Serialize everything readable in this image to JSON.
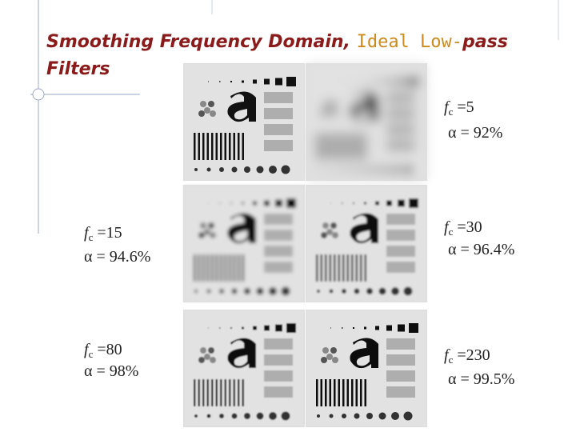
{
  "title": {
    "part1": "Smoothing Frequency Domain, ",
    "part2": "Ideal Low-",
    "part3": "pass Filters"
  },
  "panels": [
    {
      "f": "f",
      "sub": "c",
      "fc": " =5",
      "alpha": "α = 92%"
    },
    {
      "f": "f",
      "sub": "c",
      "fc": " =15",
      "alpha": "α = 94.6%"
    },
    {
      "f": "f",
      "sub": "c",
      "fc": " =30",
      "alpha": "α = 96.4%"
    },
    {
      "f": "f",
      "sub": "c",
      "fc": " =80",
      "alpha": "α = 98%"
    },
    {
      "f": "f",
      "sub": "c",
      "fc": " =230",
      "alpha": "α = 99.5%"
    }
  ]
}
